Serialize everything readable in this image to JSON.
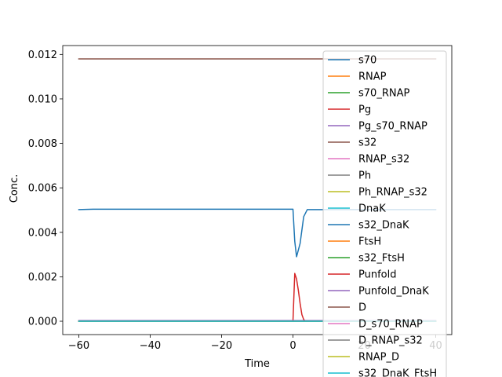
{
  "chart_data": {
    "type": "line",
    "title": "",
    "xlabel": "Time",
    "ylabel": "Conc.",
    "xlim": [
      -64.5,
      44.5
    ],
    "ylim": [
      -0.0006,
      0.0124
    ],
    "xticks": [
      -60,
      -40,
      -20,
      0,
      20,
      40
    ],
    "xtick_labels": [
      "−60",
      "−40",
      "−20",
      "0",
      "20",
      "40"
    ],
    "yticks": [
      0.0,
      0.002,
      0.004,
      0.006,
      0.008,
      0.01,
      0.012
    ],
    "ytick_labels": [
      "0.000",
      "0.002",
      "0.004",
      "0.006",
      "0.008",
      "0.010",
      "0.012"
    ],
    "grid": false,
    "legend_position": "right",
    "series": [
      {
        "name": "s70",
        "color": "#1f77b4",
        "x": [
          -60,
          -56,
          0,
          0.5,
          1,
          2,
          3,
          4,
          40
        ],
        "y": [
          0.00502,
          0.00504,
          0.00504,
          0.0036,
          0.0029,
          0.0035,
          0.0047,
          0.00502,
          0.00502
        ]
      },
      {
        "name": "RNAP",
        "color": "#ff7f0e",
        "x": [
          -60,
          40
        ],
        "y": [
          0.0,
          0.0
        ]
      },
      {
        "name": "s70_RNAP",
        "color": "#2ca02c",
        "x": [
          -60,
          40
        ],
        "y": [
          0.0,
          0.0
        ]
      },
      {
        "name": "Pg",
        "color": "#d62728",
        "x": [
          -60,
          -0.1,
          0,
          0.5,
          1,
          1.5,
          2,
          2.5,
          3,
          3.5,
          40
        ],
        "y": [
          0.0,
          0.0,
          0.0,
          0.00215,
          0.0019,
          0.0014,
          0.0008,
          0.0003,
          8e-05,
          0.0,
          0.0
        ]
      },
      {
        "name": "Pg_s70_RNAP",
        "color": "#9467bd",
        "x": [
          -60,
          40
        ],
        "y": [
          2e-05,
          2e-05
        ]
      },
      {
        "name": "s32",
        "color": "#8c564b",
        "x": [
          -60,
          40
        ],
        "y": [
          0.0118,
          0.0118
        ]
      },
      {
        "name": "RNAP_s32",
        "color": "#e377c2",
        "x": [
          -60,
          40
        ],
        "y": [
          0.0,
          0.0
        ]
      },
      {
        "name": "Ph",
        "color": "#7f7f7f",
        "x": [
          -60,
          40
        ],
        "y": [
          1e-05,
          1e-05
        ]
      },
      {
        "name": "Ph_RNAP_s32",
        "color": "#bcbd22",
        "x": [
          -60,
          40
        ],
        "y": [
          0.0,
          0.0
        ]
      },
      {
        "name": "DnaK",
        "color": "#17becf",
        "x": [
          -60,
          40
        ],
        "y": [
          0.0,
          0.0
        ]
      },
      {
        "name": "s32_DnaK",
        "color": "#1f77b4",
        "x": [
          -60,
          40
        ],
        "y": [
          0.0,
          0.0
        ]
      },
      {
        "name": "FtsH",
        "color": "#ff7f0e",
        "x": [
          -60,
          40
        ],
        "y": [
          0.0,
          0.0
        ]
      },
      {
        "name": "s32_FtsH",
        "color": "#2ca02c",
        "x": [
          -60,
          40
        ],
        "y": [
          0.0,
          0.0
        ]
      },
      {
        "name": "Punfold",
        "color": "#d62728",
        "x": [
          -60,
          40
        ],
        "y": [
          0.0,
          0.0
        ]
      },
      {
        "name": "Punfold_DnaK",
        "color": "#9467bd",
        "x": [
          -60,
          40
        ],
        "y": [
          3e-05,
          3e-05
        ]
      },
      {
        "name": "D",
        "color": "#8c564b",
        "x": [
          -60,
          40
        ],
        "y": [
          0.0,
          0.0
        ]
      },
      {
        "name": "D_s70_RNAP",
        "color": "#e377c2",
        "x": [
          -60,
          40
        ],
        "y": [
          0.0,
          0.0
        ]
      },
      {
        "name": "D_RNAP_s32",
        "color": "#7f7f7f",
        "x": [
          -60,
          40
        ],
        "y": [
          0.0,
          0.0
        ]
      },
      {
        "name": "RNAP_D",
        "color": "#bcbd22",
        "x": [
          -60,
          40
        ],
        "y": [
          0.0,
          0.0
        ]
      },
      {
        "name": "s32_DnaK_FtsH",
        "color": "#17becf",
        "x": [
          -60,
          40
        ],
        "y": [
          0.0,
          0.0
        ]
      }
    ]
  }
}
